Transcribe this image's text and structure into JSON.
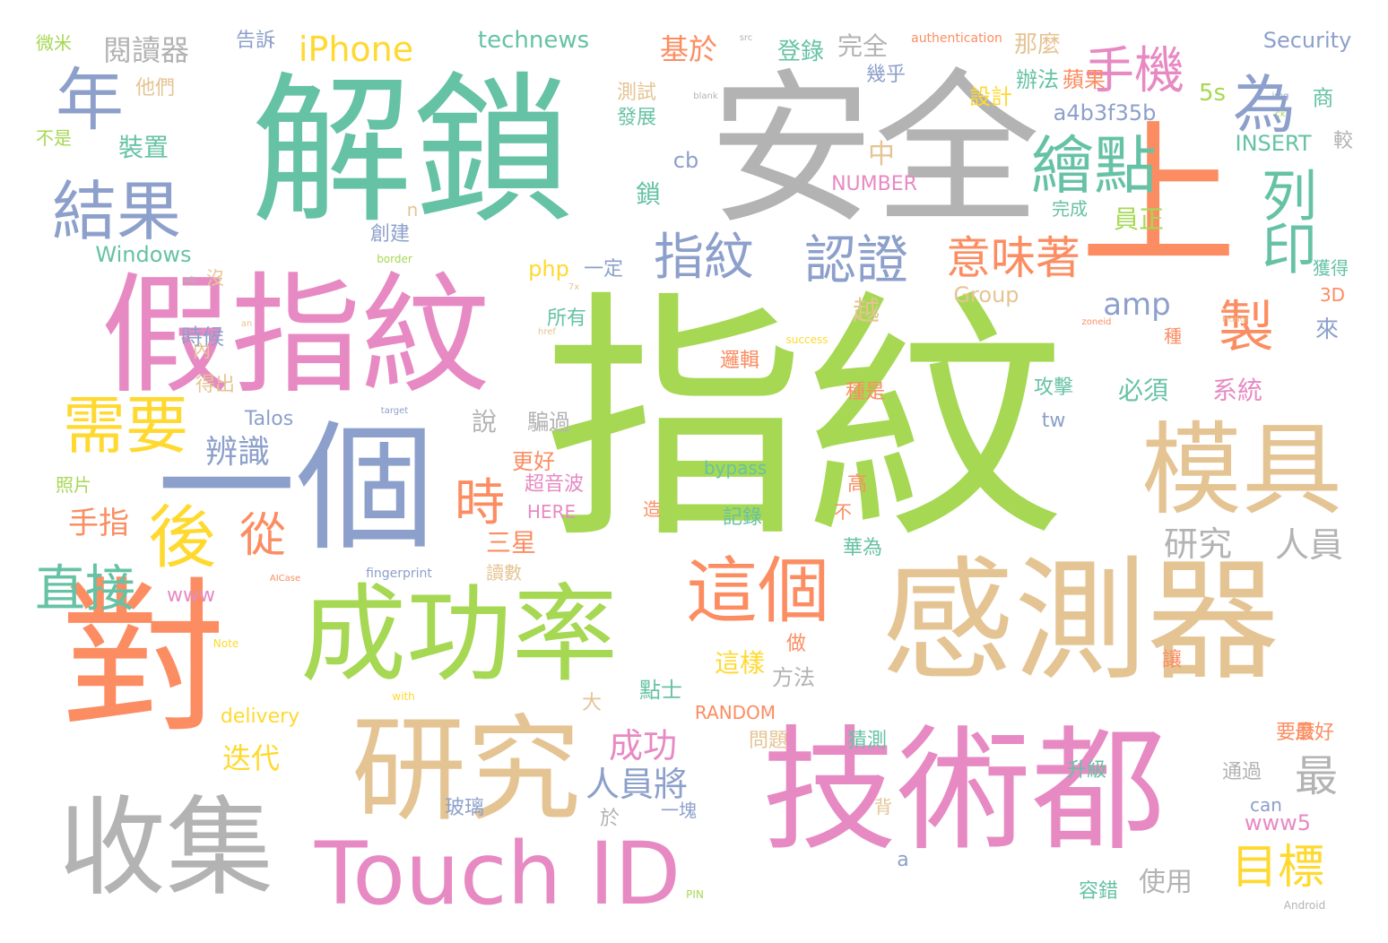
{
  "palette": {
    "green": "#a6d854",
    "teal": "#66c2a5",
    "gray": "#b3b3b3",
    "tan": "#e5c494",
    "pink": "#e78ac3",
    "orange": "#fc8d62",
    "blue": "#8da0cb",
    "yellow": "#ffd92f"
  },
  "words": [
    {
      "text": "指紋",
      "color": "#a6d854"
    },
    {
      "text": "安全",
      "color": "#b3b3b3"
    },
    {
      "text": "解鎖",
      "color": "#66c2a5"
    },
    {
      "text": "感測器",
      "color": "#e5c494"
    },
    {
      "text": "技術都",
      "color": "#e78ac3"
    },
    {
      "text": "假指紋",
      "color": "#e78ac3"
    },
    {
      "text": "一個",
      "color": "#8da0cb"
    },
    {
      "text": "成功率",
      "color": "#a6d854"
    },
    {
      "text": "研究",
      "color": "#e5c494"
    },
    {
      "text": "對",
      "color": "#fc8d62"
    },
    {
      "text": "上",
      "color": "#fc8d62"
    },
    {
      "text": "收集",
      "color": "#b3b3b3"
    },
    {
      "text": "Touch ID",
      "color": "#e78ac3"
    },
    {
      "text": "模具",
      "color": "#e5c494"
    },
    {
      "text": "結果",
      "color": "#8da0cb"
    },
    {
      "text": "需要",
      "color": "#ffd92f"
    },
    {
      "text": "這個",
      "color": "#fc8d62"
    },
    {
      "text": "後",
      "color": "#ffd92f"
    },
    {
      "text": "年",
      "color": "#8da0cb"
    },
    {
      "text": "為",
      "color": "#8da0cb"
    },
    {
      "text": "手機",
      "color": "#e78ac3"
    },
    {
      "text": "繪點",
      "color": "#66c2a5"
    },
    {
      "text": "列印",
      "color": "#66c2a5"
    },
    {
      "text": "製",
      "color": "#fc8d62"
    },
    {
      "text": "指紋",
      "color": "#8da0cb"
    },
    {
      "text": "認證",
      "color": "#8da0cb"
    },
    {
      "text": "意味著",
      "color": "#fc8d62"
    },
    {
      "text": "直接",
      "color": "#66c2a5"
    },
    {
      "text": "從",
      "color": "#fc8d62"
    },
    {
      "text": "時",
      "color": "#fc8d62"
    },
    {
      "text": "目標",
      "color": "#ffd92f"
    },
    {
      "text": "研究",
      "color": "#b3b3b3"
    },
    {
      "text": "人員",
      "color": "#b3b3b3"
    },
    {
      "text": "最",
      "color": "#b3b3b3"
    },
    {
      "text": "成功",
      "color": "#e78ac3"
    },
    {
      "text": "人員將",
      "color": "#8da0cb"
    },
    {
      "text": "iPhone",
      "color": "#ffd92f"
    },
    {
      "text": "technews",
      "color": "#66c2a5"
    },
    {
      "text": "閱讀器",
      "color": "#b3b3b3"
    },
    {
      "text": "基於",
      "color": "#fc8d62"
    },
    {
      "text": "設計",
      "color": "#ffd92f"
    },
    {
      "text": "完全",
      "color": "#b3b3b3"
    },
    {
      "text": "登錄",
      "color": "#66c2a5"
    },
    {
      "text": "authentication",
      "color": "#fc8d62"
    },
    {
      "text": "那麼",
      "color": "#e5c494"
    },
    {
      "text": "辦法",
      "color": "#66c2a5"
    },
    {
      "text": "蘋果",
      "color": "#fc8d62"
    },
    {
      "text": "Security",
      "color": "#8da0cb"
    },
    {
      "text": "商",
      "color": "#66c2a5"
    },
    {
      "text": "幾乎",
      "color": "#8da0cb"
    },
    {
      "text": "告訴",
      "color": "#8da0cb"
    },
    {
      "text": "微米",
      "color": "#a6d854"
    },
    {
      "text": "他們",
      "color": "#e5c494"
    },
    {
      "text": "不是",
      "color": "#a6d854"
    },
    {
      "text": "裝置",
      "color": "#66c2a5"
    },
    {
      "text": "辨識",
      "color": "#8da0cb"
    },
    {
      "text": "手指",
      "color": "#fc8d62"
    },
    {
      "text": "照片",
      "color": "#a6d854"
    },
    {
      "text": "Windows",
      "color": "#66c2a5"
    },
    {
      "text": "a4b3f35b",
      "color": "#8da0cb"
    },
    {
      "text": "5s",
      "color": "#a6d854"
    },
    {
      "text": "INSERT",
      "color": "#66c2a5"
    },
    {
      "text": "NUMBER",
      "color": "#e78ac3"
    },
    {
      "text": "較",
      "color": "#b3b3b3"
    },
    {
      "text": "cb",
      "color": "#8da0cb"
    },
    {
      "text": "員正",
      "color": "#a6d854"
    },
    {
      "text": "中",
      "color": "#e5c494"
    },
    {
      "text": "鎖",
      "color": "#66c2a5"
    },
    {
      "text": "測試",
      "color": "#e5c494"
    },
    {
      "text": "發展",
      "color": "#66c2a5"
    },
    {
      "text": "完成",
      "color": "#66c2a5"
    },
    {
      "text": "創建",
      "color": "#8da0cb"
    },
    {
      "text": "n",
      "color": "#e5c494"
    },
    {
      "text": "php",
      "color": "#ffd92f"
    },
    {
      "text": "一定",
      "color": "#8da0cb"
    },
    {
      "text": "amp",
      "color": "#8da0cb"
    },
    {
      "text": "Group",
      "color": "#e5c494"
    },
    {
      "text": "獲得",
      "color": "#66c2a5"
    },
    {
      "text": "3D",
      "color": "#fc8d62"
    },
    {
      "text": "越",
      "color": "#e5c494"
    },
    {
      "text": "所有",
      "color": "#66c2a5"
    },
    {
      "text": "來",
      "color": "#8da0cb"
    },
    {
      "text": "種",
      "color": "#fc8d62"
    },
    {
      "text": "必須",
      "color": "#66c2a5"
    },
    {
      "text": "系統",
      "color": "#e78ac3"
    },
    {
      "text": "時候",
      "color": "#8da0cb"
    },
    {
      "text": "沒",
      "color": "#e5c494"
    },
    {
      "text": "內",
      "color": "#e5c494"
    },
    {
      "text": "得出",
      "color": "#e5c494"
    },
    {
      "text": "邏輯",
      "color": "#fc8d62"
    },
    {
      "text": "種是",
      "color": "#fc8d62"
    },
    {
      "text": "攻擊",
      "color": "#66c2a5"
    },
    {
      "text": "說",
      "color": "#b3b3b3"
    },
    {
      "text": "騙過",
      "color": "#b3b3b3"
    },
    {
      "text": "Talos",
      "color": "#8da0cb"
    },
    {
      "text": "tw",
      "color": "#8da0cb"
    },
    {
      "text": "更好",
      "color": "#fc8d62"
    },
    {
      "text": "超音波",
      "color": "#e78ac3"
    },
    {
      "text": "bypass",
      "color": "#66c2a5"
    },
    {
      "text": "高",
      "color": "#fc8d62"
    },
    {
      "text": "HERE",
      "color": "#e78ac3"
    },
    {
      "text": "造",
      "color": "#fc8d62"
    },
    {
      "text": "記錄",
      "color": "#66c2a5"
    },
    {
      "text": "不",
      "color": "#fc8d62"
    },
    {
      "text": "三星",
      "color": "#fc8d62"
    },
    {
      "text": "讀數",
      "color": "#e5c494"
    },
    {
      "text": "華為",
      "color": "#66c2a5"
    },
    {
      "text": "www",
      "color": "#e78ac3"
    },
    {
      "text": "fingerprint",
      "color": "#8da0cb"
    },
    {
      "text": "這樣",
      "color": "#ffd92f"
    },
    {
      "text": "方法",
      "color": "#b3b3b3"
    },
    {
      "text": "做",
      "color": "#fc8d62"
    },
    {
      "text": "點士",
      "color": "#66c2a5"
    },
    {
      "text": "大",
      "color": "#e5c494"
    },
    {
      "text": "delivery",
      "color": "#ffd92f"
    },
    {
      "text": "RANDOM",
      "color": "#fc8d62"
    },
    {
      "text": "迭代",
      "color": "#ffd92f"
    },
    {
      "text": "問題",
      "color": "#e5c494"
    },
    {
      "text": "猜測",
      "color": "#66c2a5"
    },
    {
      "text": "要麼",
      "color": "#fc8d62"
    },
    {
      "text": "最好",
      "color": "#fc8d62"
    },
    {
      "text": "讓",
      "color": "#fc8d62"
    },
    {
      "text": "通過",
      "color": "#b3b3b3"
    },
    {
      "text": "升級",
      "color": "#66c2a5"
    },
    {
      "text": "can",
      "color": "#8da0cb"
    },
    {
      "text": "背",
      "color": "#e5c494"
    },
    {
      "text": "玻璃",
      "color": "#8da0cb"
    },
    {
      "text": "於",
      "color": "#b3b3b3"
    },
    {
      "text": "一塊",
      "color": "#8da0cb"
    },
    {
      "text": "www5",
      "color": "#e78ac3"
    },
    {
      "text": "a",
      "color": "#8da0cb"
    },
    {
      "text": "使用",
      "color": "#b3b3b3"
    },
    {
      "text": "容錯",
      "color": "#66c2a5"
    },
    {
      "text": "Android",
      "color": "#b3b3b3"
    },
    {
      "text": "PIN",
      "color": "#a6d854"
    },
    {
      "text": "with",
      "color": "#ffd92f"
    },
    {
      "text": "Note",
      "color": "#ffd92f"
    },
    {
      "text": "success",
      "color": "#ffd92f"
    },
    {
      "text": "border",
      "color": "#a6d854"
    },
    {
      "text": "target",
      "color": "#8da0cb"
    },
    {
      "text": "Honor",
      "color": "#e5c494"
    },
    {
      "text": "blank",
      "color": "#b3b3b3"
    },
    {
      "text": "img",
      "color": "#8da0cb"
    },
    {
      "text": "ck",
      "color": "#a6d854"
    },
    {
      "text": "href",
      "color": "#e5c494"
    },
    {
      "text": "src",
      "color": "#b3b3b3"
    },
    {
      "text": "an",
      "color": "#e5c494"
    },
    {
      "text": "alt",
      "color": "#b3b3b3"
    },
    {
      "text": "7x",
      "color": "#e5c494"
    },
    {
      "text": "AICase",
      "color": "#fc8d62"
    },
    {
      "text": "zoneid",
      "color": "#fc8d62"
    }
  ]
}
